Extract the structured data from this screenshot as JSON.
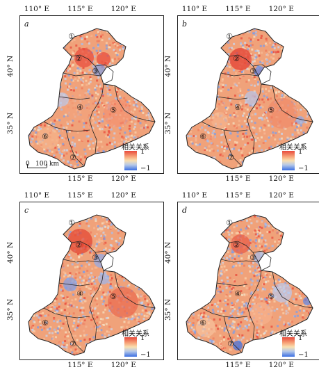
{
  "panels": [
    {
      "letter": "a",
      "show_scale": true
    },
    {
      "letter": "b",
      "show_scale": false
    },
    {
      "letter": "c",
      "show_scale": false
    },
    {
      "letter": "d",
      "show_scale": false
    }
  ],
  "x_ticks": [
    "110° E",
    "115° E",
    "120° E"
  ],
  "y_ticks": [
    "40° N",
    "35° N"
  ],
  "region_labels": [
    "①",
    "②",
    "③",
    "④",
    "⑤",
    "⑥",
    "⑦"
  ],
  "legend": {
    "title": "相关关系",
    "max": "1",
    "min": "−1"
  },
  "scale": {
    "zero": "0",
    "label": "100 km"
  },
  "colors": {
    "positive": "#e84a3c",
    "neutral": "#f9e0b0",
    "negative": "#3b6fe3",
    "land_fill": "#f0a27a"
  }
}
